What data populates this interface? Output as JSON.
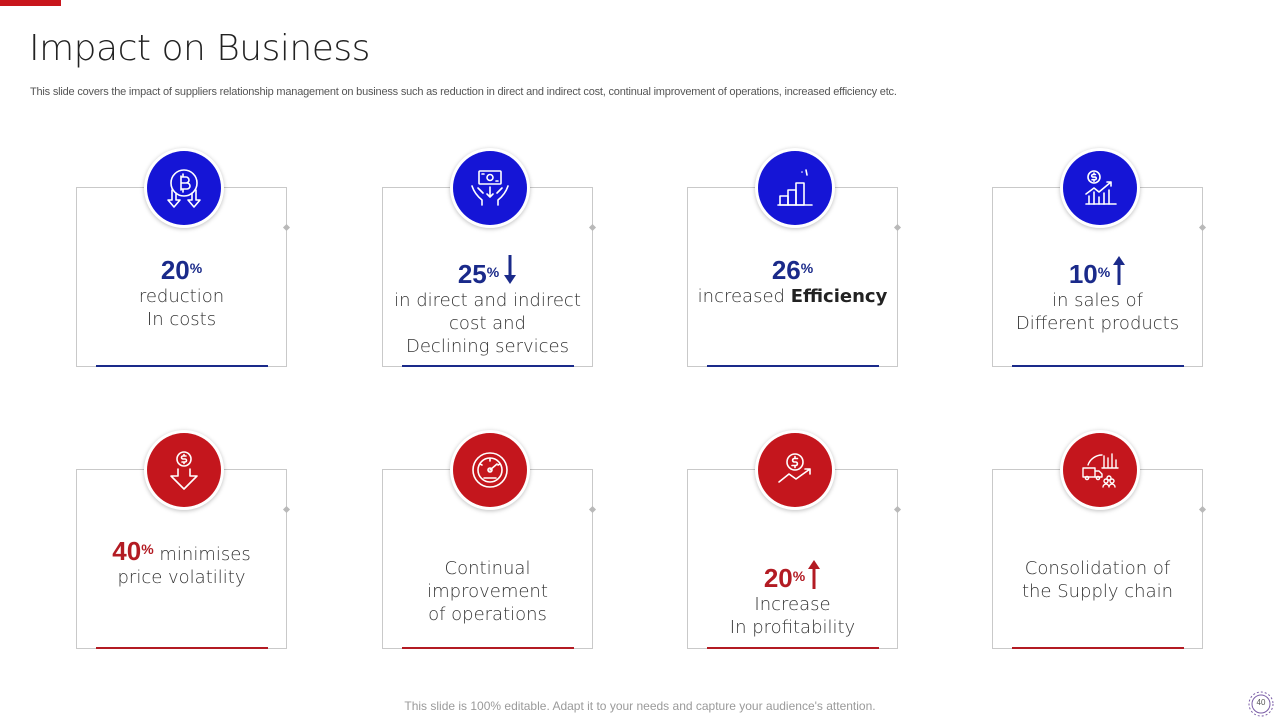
{
  "slide": {
    "title": "Impact on Business",
    "subtitle": "This slide covers the impact of suppliers relationship management on business such as reduction in direct and indirect cost, continual improvement of operations, increased efficiency etc.",
    "footer": "This slide is 100% editable. Adapt it to your needs and capture your audience's attention.",
    "page_number": "40"
  },
  "colors": {
    "accent_red": "#c8161d",
    "blue_circle": "#1515d6",
    "blue_text": "#1a2a8a",
    "red_circle": "#c4161d",
    "red_text": "#b31b23"
  },
  "cards": [
    {
      "icon": "bitcoin-down-icon",
      "percent": "20",
      "pct_sign": "%",
      "lines": [
        "reduction",
        "In costs"
      ]
    },
    {
      "icon": "cash-hands-icon",
      "percent": "25",
      "pct_sign": "%",
      "arrow": "down",
      "lines": [
        "in direct and indirect",
        "cost and",
        "Declining services"
      ]
    },
    {
      "icon": "bar-growth-icon",
      "percent": "26",
      "pct_sign": "%",
      "text_pre": "increased ",
      "text_bold": "Efficiency"
    },
    {
      "icon": "dollar-chart-icon",
      "percent": "10",
      "pct_sign": "%",
      "arrow": "up",
      "lines": [
        "in sales of",
        "Different products"
      ]
    },
    {
      "icon": "dollar-down-icon",
      "percent": "40",
      "pct_sign": "%",
      "inline_text": " minimises",
      "lines": [
        "price volatility"
      ]
    },
    {
      "icon": "speedometer-icon",
      "lines": [
        "Continual",
        "improvement",
        "of operations"
      ]
    },
    {
      "icon": "dollar-trend-icon",
      "percent": "20",
      "pct_sign": "%",
      "arrow": "up",
      "lines": [
        "Increase",
        "In profitability"
      ]
    },
    {
      "icon": "supply-chain-icon",
      "lines": [
        "Consolidation of",
        "the Supply chain"
      ]
    }
  ]
}
